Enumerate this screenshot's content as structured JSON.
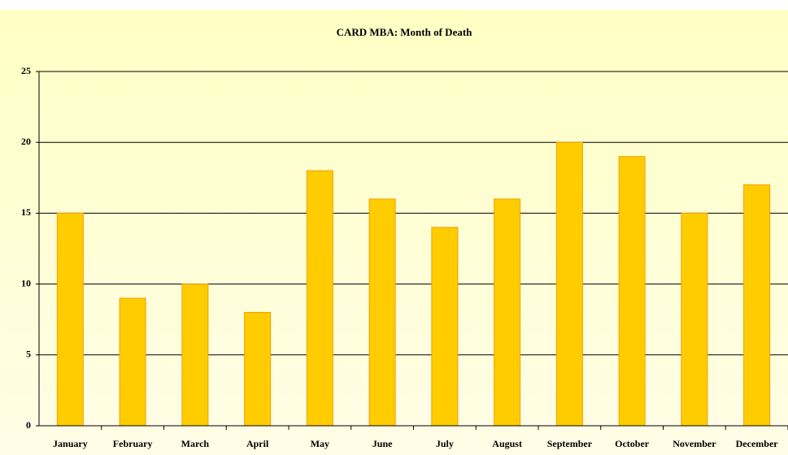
{
  "chart_data": {
    "type": "bar",
    "title": "CARD MBA: Month of Death",
    "categories": [
      "January",
      "February",
      "March",
      "April",
      "May",
      "June",
      "July",
      "August",
      "September",
      "October",
      "November",
      "December"
    ],
    "values": [
      15,
      9,
      10,
      8,
      18,
      16,
      14,
      16,
      20,
      19,
      15,
      17
    ],
    "color": "#ffcc00",
    "ylim": [
      0,
      25
    ],
    "yticks": [
      0,
      5,
      10,
      15,
      20,
      25
    ],
    "grid": true
  }
}
